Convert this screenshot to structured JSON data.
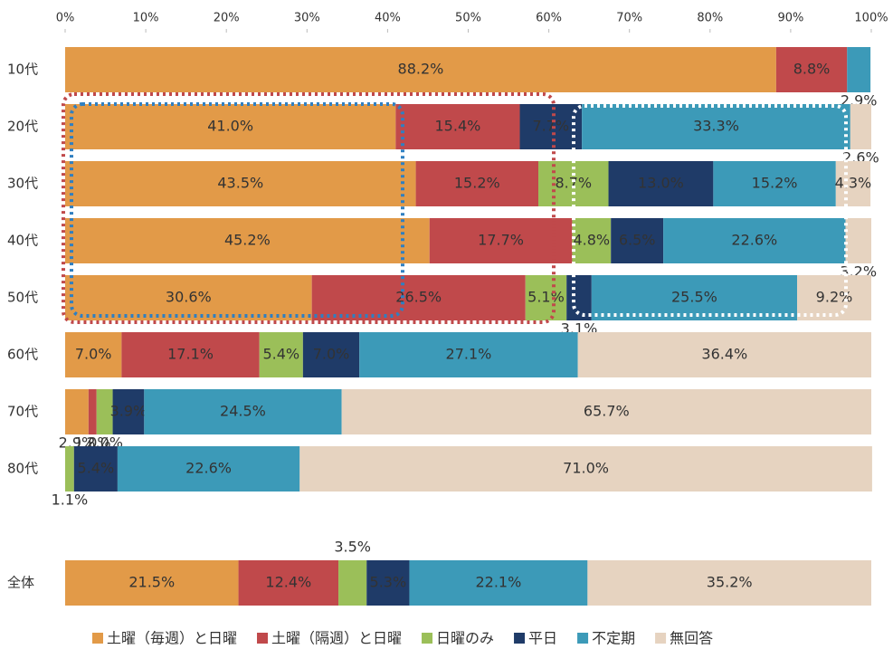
{
  "chart_data": {
    "type": "stacked_bar_horizontal",
    "categories": [
      "10代",
      "20代",
      "30代",
      "40代",
      "50代",
      "60代",
      "70代",
      "80代",
      "全体"
    ],
    "xlim": [
      0,
      100
    ],
    "xticks": [
      {
        "value": 0,
        "label": "0%"
      },
      {
        "value": 10,
        "label": "10%"
      },
      {
        "value": 20,
        "label": "20%"
      },
      {
        "value": 30,
        "label": "30%"
      },
      {
        "value": 40,
        "label": "40%"
      },
      {
        "value": 50,
        "label": "50%"
      },
      {
        "value": 60,
        "label": "60%"
      },
      {
        "value": 70,
        "label": "70%"
      },
      {
        "value": 80,
        "label": "80%"
      },
      {
        "value": 90,
        "label": "90%"
      },
      {
        "value": 100,
        "label": "100%"
      }
    ],
    "legend": "bottom",
    "series": [
      {
        "name": "土曜（毎週）と日曜",
        "color": "#e29a48",
        "text_color": "#333333",
        "values": [
          88.2,
          41.0,
          43.5,
          45.2,
          30.6,
          7.0,
          2.9,
          null,
          21.5
        ],
        "value_labels": [
          "88.2%",
          "41.0%",
          "43.5%",
          "45.2%",
          "30.6%",
          "7.0%",
          "2.9%",
          null,
          "21.5%"
        ]
      },
      {
        "name": "土曜（隔週）と日曜",
        "color": "#c0494b",
        "text_color": "#ffffff",
        "values": [
          8.8,
          15.4,
          15.2,
          17.7,
          26.5,
          17.1,
          1.0,
          null,
          12.4
        ],
        "value_labels": [
          "8.8%",
          "15.4%",
          "15.2%",
          "17.7%",
          "26.5%",
          "17.1%",
          "1.0%",
          null,
          "12.4%"
        ]
      },
      {
        "name": "日曜のみ",
        "color": "#9bbf59",
        "text_color": "#333333",
        "values": [
          null,
          null,
          8.7,
          4.8,
          5.1,
          5.4,
          2.0,
          1.1,
          3.5
        ],
        "value_labels": [
          null,
          null,
          "8.7%",
          "4.8%",
          "5.1%",
          "5.4%",
          "2.0%",
          "1.1%",
          "3.5%"
        ]
      },
      {
        "name": "平日",
        "color": "#1f3b68",
        "text_color": "#ffffff",
        "values": [
          null,
          7.7,
          13.0,
          6.5,
          3.1,
          7.0,
          3.9,
          5.4,
          5.3
        ],
        "value_labels": [
          null,
          "7.7%",
          "13.0%",
          "6.5%",
          "3.1%",
          "7.0%",
          "3.9%",
          "5.4%",
          "5.3%"
        ]
      },
      {
        "name": "不定期",
        "color": "#3c9ab8",
        "text_color": "#333333",
        "values": [
          2.9,
          33.3,
          15.2,
          22.6,
          25.5,
          27.1,
          24.5,
          22.6,
          22.1
        ],
        "value_labels": [
          "2.9%",
          "33.3%",
          "15.2%",
          "22.6%",
          "25.5%",
          "27.1%",
          "24.5%",
          "22.6%",
          "22.1%"
        ]
      },
      {
        "name": "無回答",
        "color": "#e6d3c0",
        "text_color": "#333333",
        "values": [
          null,
          2.6,
          4.3,
          3.2,
          9.2,
          36.4,
          65.7,
          71.0,
          35.2
        ],
        "value_labels": [
          null,
          "2.6%",
          "4.3%",
          "3.2%",
          "9.2%",
          "36.4%",
          "65.7%",
          "71.0%",
          "35.2%"
        ]
      }
    ]
  }
}
